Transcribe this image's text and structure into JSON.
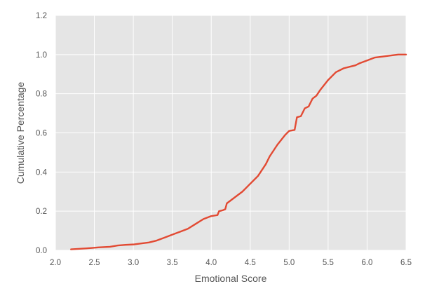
{
  "chart_data": {
    "type": "line",
    "title": "",
    "xlabel": "Emotional Score",
    "ylabel": "Cumulative Percentage",
    "xlim": [
      2.0,
      6.5
    ],
    "ylim": [
      0.0,
      1.2
    ],
    "xticks": [
      "2.0",
      "2.5",
      "3.0",
      "3.5",
      "4.0",
      "4.5",
      "5.0",
      "5.5",
      "6.0",
      "6.5"
    ],
    "yticks": [
      "0.0",
      "0.2",
      "0.4",
      "0.6",
      "0.8",
      "1.0",
      "1.2"
    ],
    "grid": true,
    "legend": "none",
    "colors": {
      "line": "#e24a33",
      "plot_background": "#e5e5e5",
      "grid": "#ffffff",
      "text": "#555555"
    },
    "series": [
      {
        "x": [
          2.2,
          2.4,
          2.55,
          2.7,
          2.8,
          2.9,
          3.0,
          3.1,
          3.2,
          3.3,
          3.4,
          3.5,
          3.6,
          3.7,
          3.8,
          3.9,
          4.0,
          4.08,
          4.1,
          4.15,
          4.18,
          4.2,
          4.3,
          4.4,
          4.45,
          4.5,
          4.6,
          4.65,
          4.7,
          4.75,
          4.8,
          4.85,
          4.9,
          4.95,
          5.0,
          5.07,
          5.1,
          5.15,
          5.2,
          5.25,
          5.3,
          5.35,
          5.4,
          5.5,
          5.6,
          5.7,
          5.8,
          5.85,
          5.9,
          6.0,
          6.1,
          6.2,
          6.3,
          6.4,
          6.5
        ],
        "y": [
          0.005,
          0.01,
          0.015,
          0.018,
          0.025,
          0.028,
          0.03,
          0.035,
          0.04,
          0.05,
          0.065,
          0.08,
          0.095,
          0.11,
          0.135,
          0.16,
          0.175,
          0.18,
          0.2,
          0.205,
          0.21,
          0.24,
          0.27,
          0.3,
          0.32,
          0.34,
          0.38,
          0.41,
          0.44,
          0.48,
          0.51,
          0.54,
          0.565,
          0.59,
          0.61,
          0.615,
          0.68,
          0.685,
          0.725,
          0.735,
          0.775,
          0.79,
          0.82,
          0.87,
          0.91,
          0.93,
          0.94,
          0.945,
          0.955,
          0.97,
          0.985,
          0.99,
          0.995,
          1.0,
          1.0
        ]
      }
    ]
  }
}
